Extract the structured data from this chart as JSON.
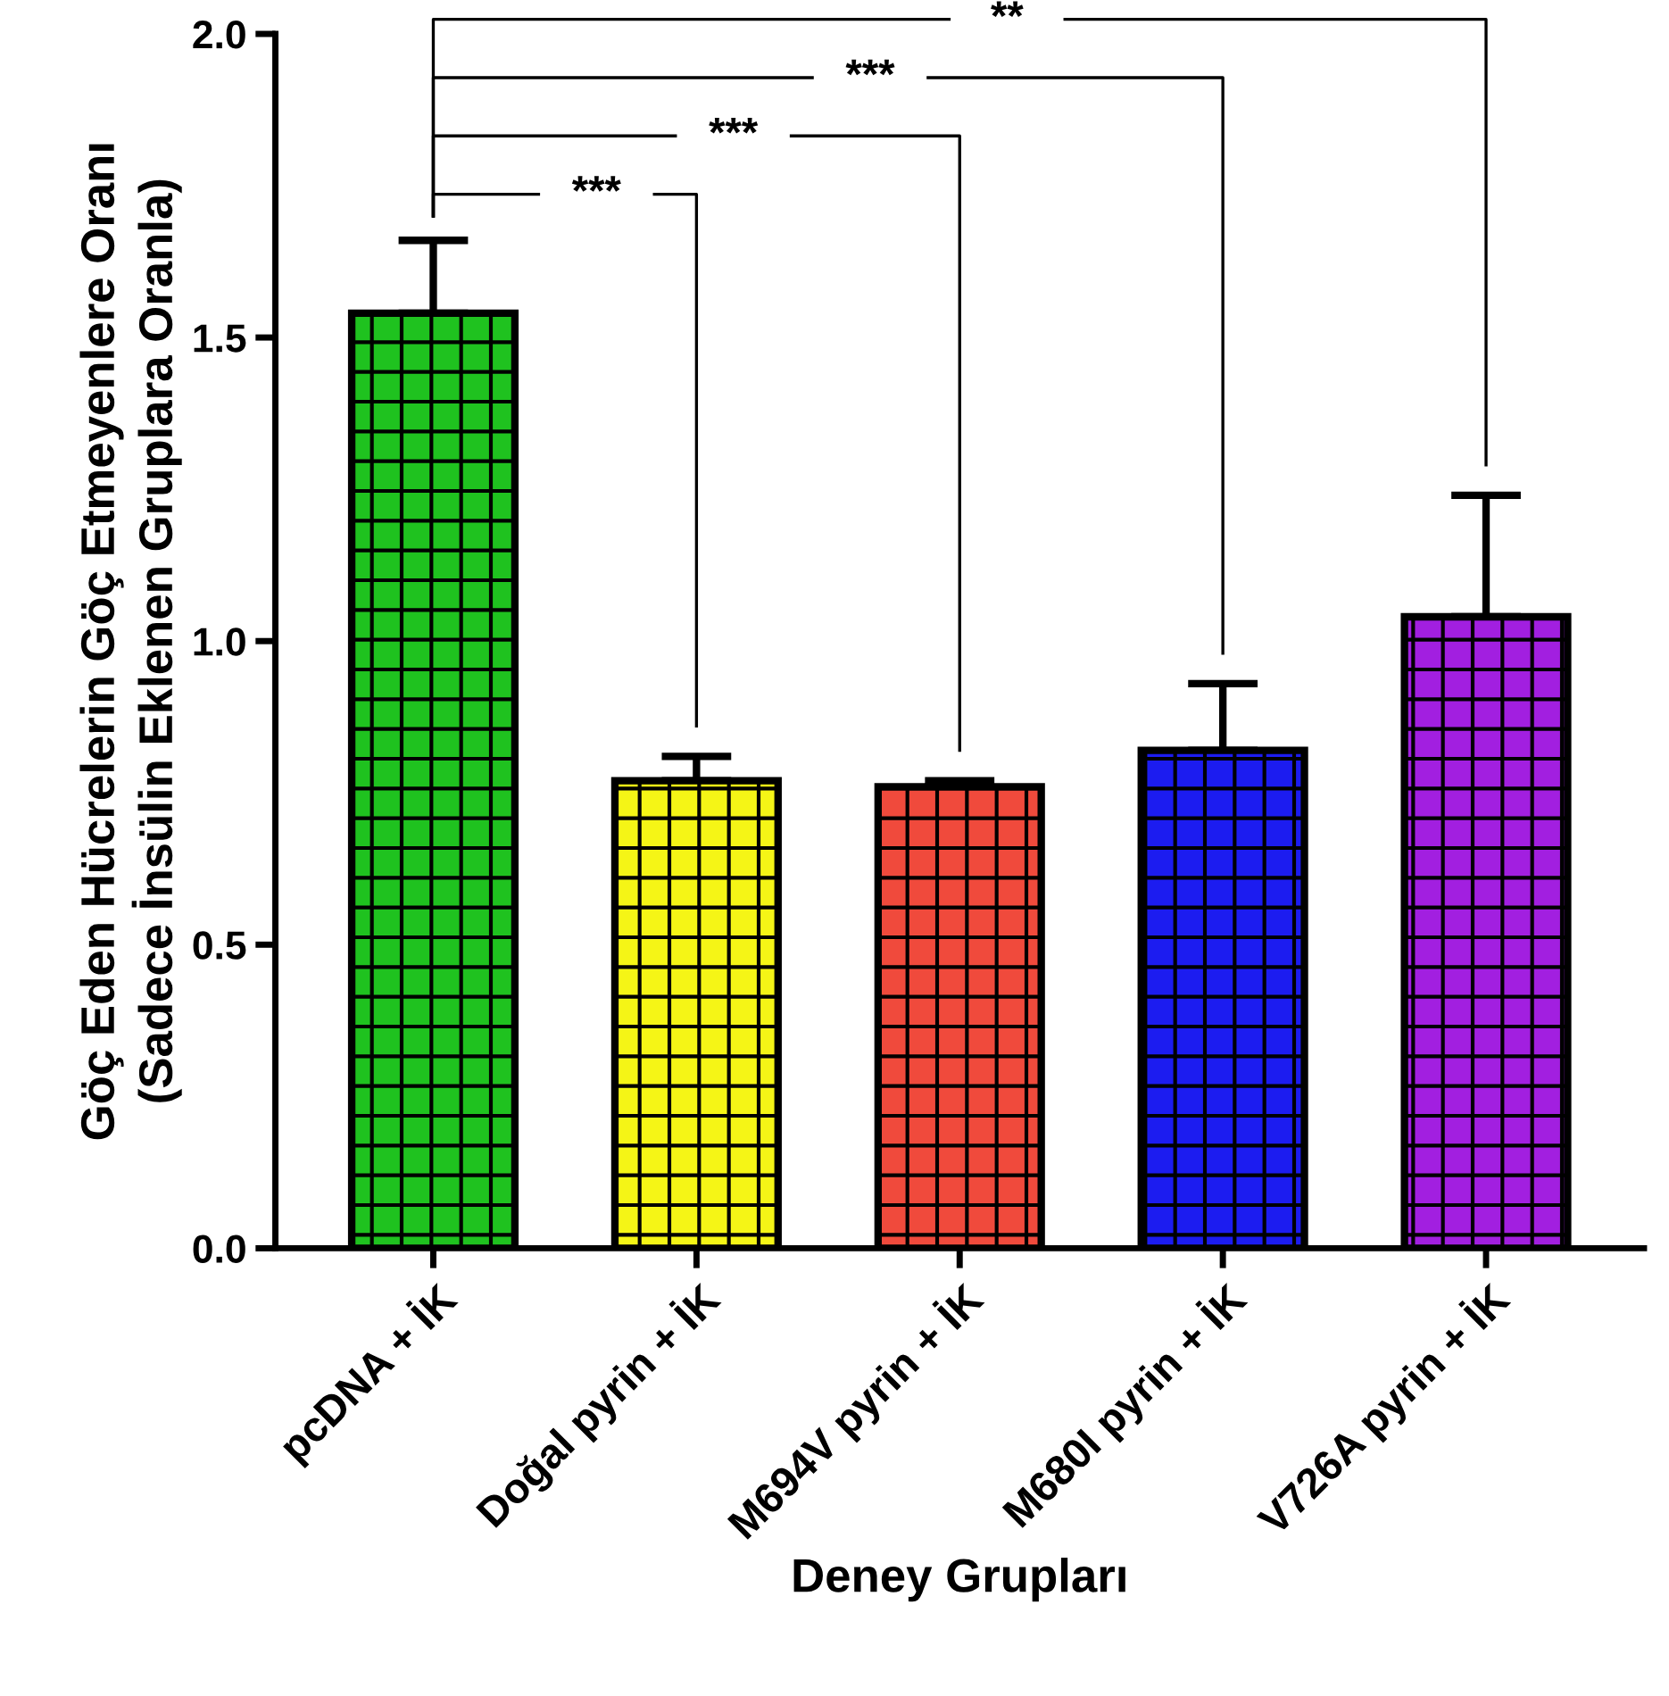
{
  "chart_data": {
    "type": "bar",
    "xlabel": "Deney Grupları",
    "ylabel": "Göç Eden Hücrelerin Göç Etmeyenlere Oranı\n(Sadece İnsülin Eklenen Gruplara Oranla)",
    "categories": [
      "pcDNA + İK",
      "Doğal pyrin + İK",
      "M694V pyrin + İK",
      "M680I pyrin + İK",
      "V726A pyrin + İK"
    ],
    "values": [
      1.54,
      0.77,
      0.76,
      0.82,
      1.04
    ],
    "errors": [
      0.12,
      0.04,
      0.01,
      0.11,
      0.2
    ],
    "colors": [
      "#1fc21f",
      "#f5f516",
      "#f04a3c",
      "#1c1cf0",
      "#a21fe0"
    ],
    "ylim": [
      0,
      2.0
    ],
    "yticks": [
      {
        "value": 0,
        "label": "0.0"
      },
      {
        "value": 0.5,
        "label": "0.5"
      },
      {
        "value": 1.0,
        "label": "1.0"
      },
      {
        "value": 1.5,
        "label": "1.5"
      },
      {
        "value": 2.0,
        "label": "2.0"
      }
    ],
    "annotations": [
      "***",
      "***",
      "***",
      "**"
    ],
    "grid": false,
    "legend": false
  }
}
